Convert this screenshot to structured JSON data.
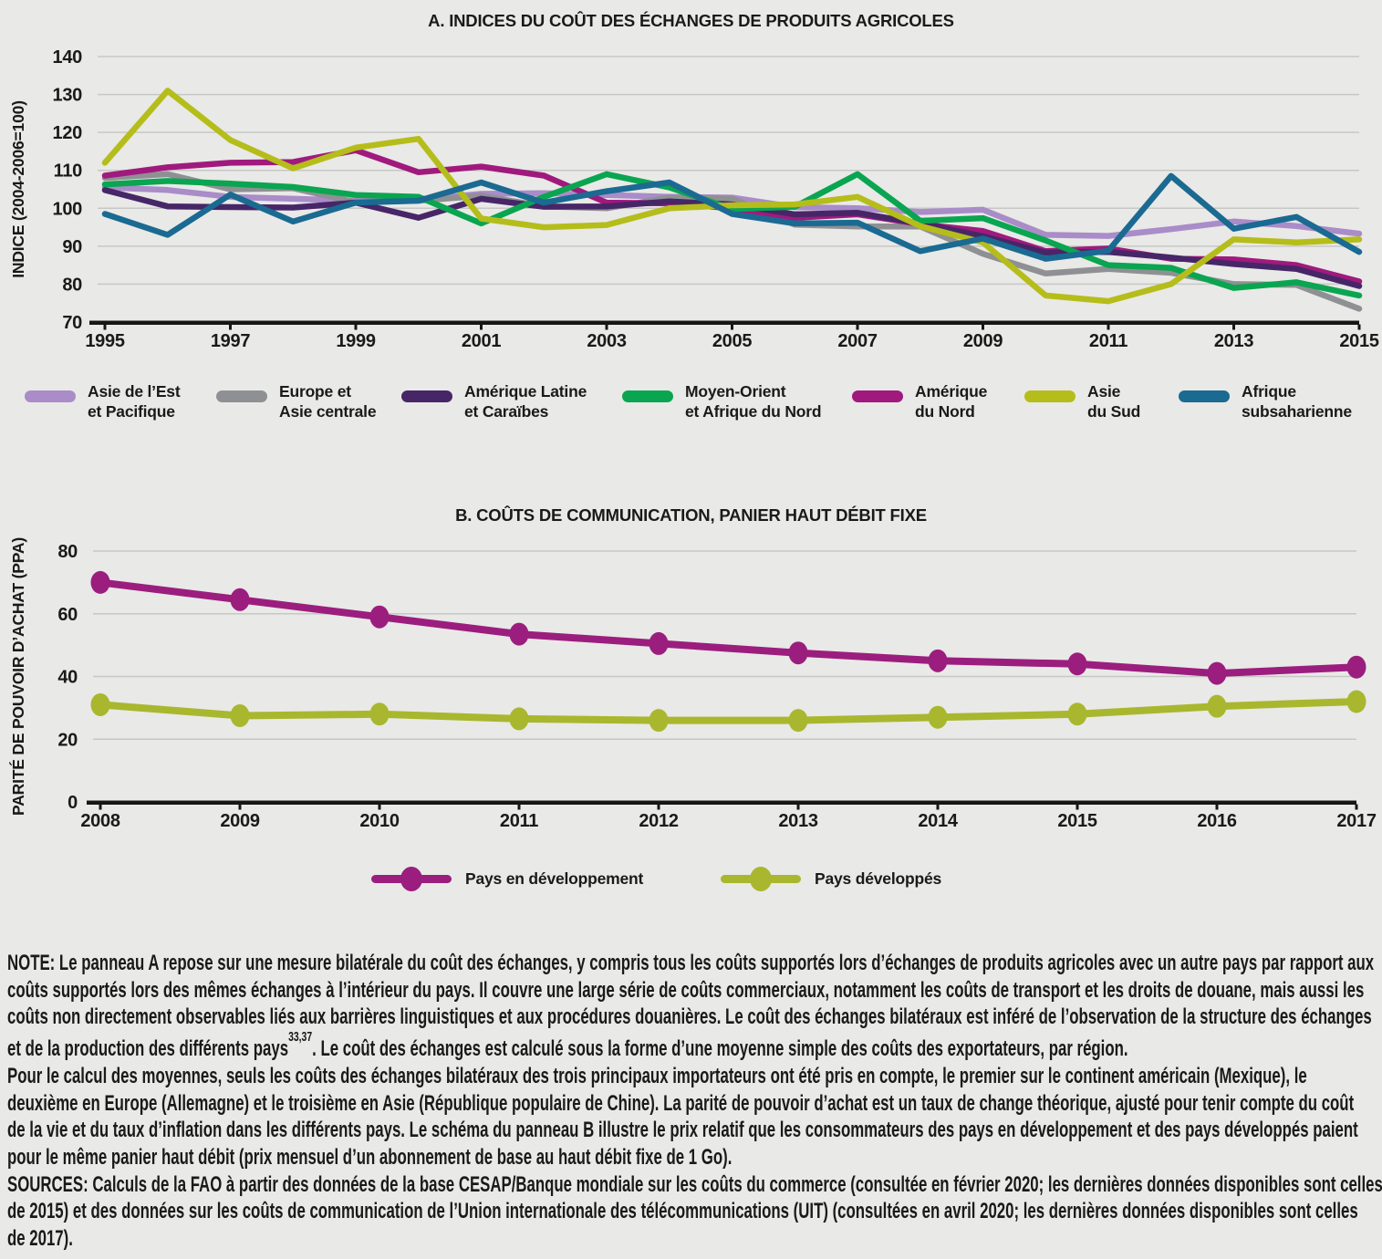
{
  "page": {
    "background": "#e9e9e7",
    "grid_color": "#c7c7c5",
    "axis_color": "#161616",
    "text_color": "#1a1a1a"
  },
  "panel_a": {
    "title": "A. INDICES DU COÛT DES ÉCHANGES DE PRODUITS AGRICOLES",
    "ylabel": "INDICE (2004-2006=100)",
    "legend": [
      {
        "line1": "Asie de l’Est",
        "line2": "et Pacifique",
        "color": "#a98cc8"
      },
      {
        "line1": "Europe et",
        "line2": "Asie centrale",
        "color": "#8f9093"
      },
      {
        "line1": "Amérique Latine",
        "line2": "et Caraïbes",
        "color": "#472668"
      },
      {
        "line1": "Moyen-Orient",
        "line2": "et Afrique du Nord",
        "color": "#0aa550"
      },
      {
        "line1": "Amérique",
        "line2": "du Nord",
        "color": "#a01a7d"
      },
      {
        "line1": "Asie",
        "line2": "du Sud",
        "color": "#b5bd1a"
      },
      {
        "line1": "Afrique",
        "line2": "subsaharienne",
        "color": "#1a6a92"
      }
    ]
  },
  "panel_b": {
    "title": "B. COÛTS DE COMMUNICATION, PANIER HAUT DÉBIT FIXE",
    "ylabel": "PARITÉ DE POUVOIR D’ACHAT (PPA)",
    "legend": [
      {
        "label": "Pays en développement",
        "color": "#9b1e7e"
      },
      {
        "label": "Pays développés",
        "color": "#a9b72e"
      }
    ]
  },
  "chart_data": [
    {
      "type": "line",
      "title": "A. INDICES DU COÛT DES ÉCHANGES DE PRODUITS AGRICOLES",
      "xlabel": "",
      "ylabel": "INDICE (2004-2006=100)",
      "x": [
        1995,
        1996,
        1997,
        1998,
        1999,
        2000,
        2001,
        2002,
        2003,
        2004,
        2005,
        2006,
        2007,
        2008,
        2009,
        2010,
        2011,
        2012,
        2013,
        2014,
        2015
      ],
      "xlim": [
        1995,
        2015
      ],
      "xticks": [
        1995,
        1997,
        1999,
        2001,
        2003,
        2005,
        2007,
        2009,
        2011,
        2013,
        2015
      ],
      "ylim": [
        70,
        140
      ],
      "yticks": [
        70,
        80,
        90,
        100,
        110,
        120,
        130,
        140
      ],
      "grid": true,
      "legend_position": "bottom",
      "series": [
        {
          "name": "Asie de l’Est et Pacifique",
          "color": "#a98cc8",
          "values": [
            105.5,
            104.8,
            103,
            102.5,
            102,
            102.3,
            103.8,
            104,
            103.5,
            103,
            102.8,
            100.3,
            100,
            99,
            99.6,
            93,
            92.7,
            94.5,
            96.5,
            95.3,
            93.3
          ]
        },
        {
          "name": "Europe et Asie centrale",
          "color": "#8f9093",
          "values": [
            108,
            109,
            105,
            105.3,
            101.6,
            102,
            103.3,
            100.5,
            100,
            102.8,
            102.5,
            95.7,
            95.2,
            95.2,
            88,
            82.8,
            84,
            83,
            80,
            79.8,
            73.5
          ]
        },
        {
          "name": "Amérique Latine et Caraïbes",
          "color": "#472668",
          "values": [
            104.8,
            100.5,
            100.3,
            100.2,
            101.5,
            97.5,
            102.5,
            100.4,
            100.5,
            101.8,
            101,
            98.4,
            98.8,
            96,
            92.6,
            88.3,
            88.5,
            87,
            85.3,
            84,
            79.5
          ]
        },
        {
          "name": "Moyen-Orient et Afrique du Nord",
          "color": "#0aa550",
          "values": [
            106.3,
            107.2,
            106.5,
            105.6,
            103.5,
            103,
            96,
            103,
            109,
            105.5,
            99.8,
            100.4,
            109,
            96.7,
            97.4,
            91.5,
            85,
            84.3,
            79,
            80.5,
            77
          ]
        },
        {
          "name": "Amérique du Nord",
          "color": "#a01a7d",
          "values": [
            108.6,
            110.8,
            112,
            112.2,
            115.3,
            109.5,
            111,
            108.6,
            101.5,
            101.3,
            100,
            97.5,
            98.4,
            95.8,
            94,
            88.7,
            89.4,
            86.7,
            86.5,
            85,
            80.7
          ]
        },
        {
          "name": "Asie du Sud",
          "color": "#b5bd1a",
          "values": [
            112,
            131,
            118,
            110.5,
            116,
            118.3,
            97.3,
            95,
            95.6,
            100,
            100.8,
            101,
            103,
            95.3,
            91,
            77,
            75.5,
            80,
            91.8,
            91,
            91.8
          ]
        },
        {
          "name": "Afrique subsaharienne",
          "color": "#1a6a92",
          "values": [
            98.5,
            93,
            103.6,
            96.5,
            101.5,
            102,
            106.8,
            101.5,
            104.5,
            106.8,
            98.5,
            96,
            96.2,
            88.7,
            92,
            86.7,
            88.8,
            108.5,
            94.6,
            97.7,
            88.5
          ]
        }
      ]
    },
    {
      "type": "line",
      "title": "B. COÛTS DE COMMUNICATION, PANIER HAUT DÉBIT FIXE",
      "xlabel": "",
      "ylabel": "PARITÉ DE POUVOIR D’ACHAT (PPA)",
      "x": [
        2008,
        2009,
        2010,
        2011,
        2012,
        2013,
        2014,
        2015,
        2016,
        2017
      ],
      "xlim": [
        2008,
        2017
      ],
      "xticks": [
        2008,
        2009,
        2010,
        2011,
        2012,
        2013,
        2014,
        2015,
        2016,
        2017
      ],
      "ylim": [
        0,
        80
      ],
      "yticks": [
        0,
        20,
        40,
        60,
        80
      ],
      "grid": true,
      "markers": true,
      "legend_position": "bottom",
      "series": [
        {
          "name": "Pays en développement",
          "color": "#9b1e7e",
          "values": [
            70,
            64.5,
            59,
            53.5,
            50.5,
            47.5,
            45,
            44,
            41,
            43
          ]
        },
        {
          "name": "Pays développés",
          "color": "#a9b72e",
          "values": [
            31,
            27.5,
            28,
            26.5,
            26,
            26,
            27,
            28,
            30.5,
            32
          ]
        }
      ]
    }
  ],
  "note": {
    "lines": [
      "NOTE: Le panneau A repose sur une mesure bilatérale du coût des échanges, y compris tous les coûts supportés lors d’échanges de produits agricoles avec un autre pays par rapport aux",
      "coûts supportés lors des mêmes échanges à l’intérieur du pays. Il couvre une large série de coûts commerciaux, notamment les coûts de transport et les droits de douane, mais aussi les",
      "coûts non directement observables liés aux barrières linguistiques et aux procédures douanières. Le coût des échanges bilatéraux est inféré de l’observation de la structure des échanges",
      {
        "pre": "et de la production des différents pays",
        "sup": "33,37",
        "post": ". Le coût des échanges est calculé sous la forme d’une moyenne simple des coûts des exportateurs, par région."
      },
      "Pour le calcul des moyennes, seuls les coûts des échanges bilatéraux des trois principaux importateurs ont été pris en compte, le premier sur le continent américain (Mexique), le",
      "deuxième en Europe (Allemagne) et le troisième en Asie (République populaire de Chine). La parité de pouvoir d’achat est un taux de change théorique, ajusté pour tenir compte du coût",
      "de la vie et du taux d’inflation dans les différents pays. Le schéma du panneau B illustre le prix relatif que les consommateurs des pays en développement et des pays développés paient",
      "pour le même panier haut débit (prix mensuel d’un abonnement de base au haut débit fixe de 1 Go).",
      "SOURCES: Calculs de la FAO à partir des données de la base CESAP/Banque mondiale sur les coûts du commerce (consultée en février 2020; les dernières données disponibles sont celles",
      "de 2015) et des données sur les coûts de communication de l’Union internationale des télécommunications (UIT) (consultées en avril 2020; les dernières données disponibles sont celles",
      "de 2017)."
    ]
  }
}
